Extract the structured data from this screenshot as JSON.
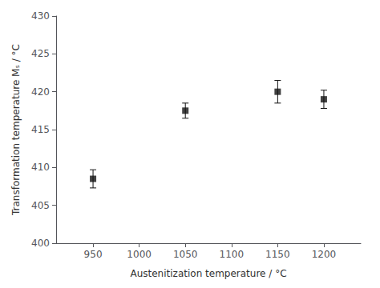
{
  "chart_data": {
    "type": "scatter",
    "x": [
      950,
      1050,
      1150,
      1200
    ],
    "values": [
      408.5,
      417.5,
      420.0,
      419.0
    ],
    "yerr": [
      1.2,
      1.0,
      1.5,
      1.2
    ],
    "xlabel": "Austenitization temperature / °C",
    "ylabel": "Transformation temperature Mₛ / °C",
    "xlim": [
      910,
      1240
    ],
    "ylim": [
      400,
      430
    ],
    "xticks": [
      950,
      1000,
      1050,
      1100,
      1150,
      1200
    ],
    "yticks": [
      400,
      405,
      410,
      415,
      420,
      425,
      430
    ],
    "color": "#111111",
    "marker": "square",
    "grid": false
  }
}
